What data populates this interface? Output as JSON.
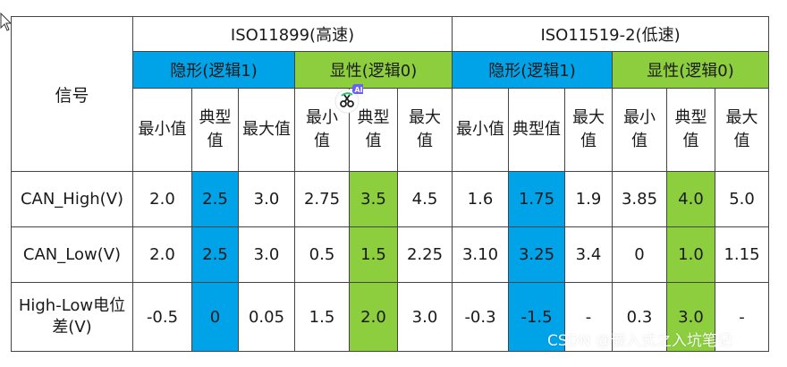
{
  "colors": {
    "recessive_fill": "#00a2e8",
    "dominant_fill": "#8cce3e",
    "border": "#444444"
  },
  "table": {
    "signal_header": "信号",
    "standards": [
      "ISO11899(高速)",
      "ISO11519-2(低速)"
    ],
    "modes": [
      "隐形(逻辑1)",
      "显性(逻辑0)",
      "隐形(逻辑1)",
      "显性(逻辑0)"
    ],
    "stats": [
      "最小值",
      "典型值",
      "最大值",
      "最小值",
      "典型值",
      "最大值",
      "最小值",
      "典型值",
      "最大值",
      "最小值",
      "典型值",
      "最大值"
    ],
    "rows": [
      {
        "signal": "CAN_High(V)",
        "values": [
          "2.0",
          "2.5",
          "3.0",
          "2.75",
          "3.5",
          "4.5",
          "1.6",
          "1.75",
          "1.9",
          "3.85",
          "4.0",
          "5.0"
        ]
      },
      {
        "signal": "CAN_Low(V)",
        "values": [
          "2.0",
          "2.5",
          "3.0",
          "0.5",
          "1.5",
          "2.25",
          "3.10",
          "3.25",
          "3.4",
          "0",
          "1.0",
          "1.15"
        ]
      },
      {
        "signal": "High-Low电位差(V)",
        "values": [
          "-0.5",
          "0",
          "0.05",
          "1.5",
          "2.0",
          "3.0",
          "-0.3",
          "-1.5",
          "-",
          "0.3",
          "3.0",
          "-"
        ]
      }
    ]
  },
  "ai_badge": {
    "label": "AI",
    "icon": "scissors-icon"
  },
  "watermark": "CSDN @嵌入式之入坑笔记"
}
